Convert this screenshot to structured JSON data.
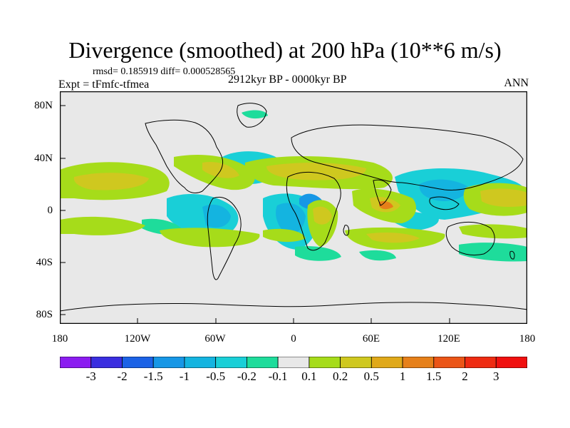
{
  "title": "Divergence (smoothed) at 200 hPa (10**6 m/s)",
  "stats": "rmsd= 0.185919  diff= 0.000528565",
  "experiment": "Expt = tFmfc-tfmea",
  "period": "2912kyr BP - 0000kyr BP",
  "season": "ANN",
  "y_ticks": [
    "80N",
    "40N",
    "0",
    "40S",
    "80S"
  ],
  "x_ticks": [
    "180",
    "120W",
    "60W",
    "0",
    "60E",
    "120E",
    "180"
  ],
  "colorbar": {
    "labels": [
      "-3",
      "-2",
      "-1.5",
      "-1",
      "-0.5",
      "-0.2",
      "-0.1",
      "0.1",
      "0.2",
      "0.5",
      "1",
      "1.5",
      "2",
      "3"
    ],
    "colors": [
      "#8b1cf0",
      "#3a2ee0",
      "#1b62e6",
      "#1797e6",
      "#14b4e0",
      "#19cfd7",
      "#1edc9b",
      "#e8e8e8",
      "#a6dc1a",
      "#cfc81f",
      "#e0a91a",
      "#e6801a",
      "#eb5517",
      "#ee2b12",
      "#f0100f"
    ]
  },
  "map": {
    "ocean_color": "#e8e8e8",
    "coast_color": "#000000"
  }
}
